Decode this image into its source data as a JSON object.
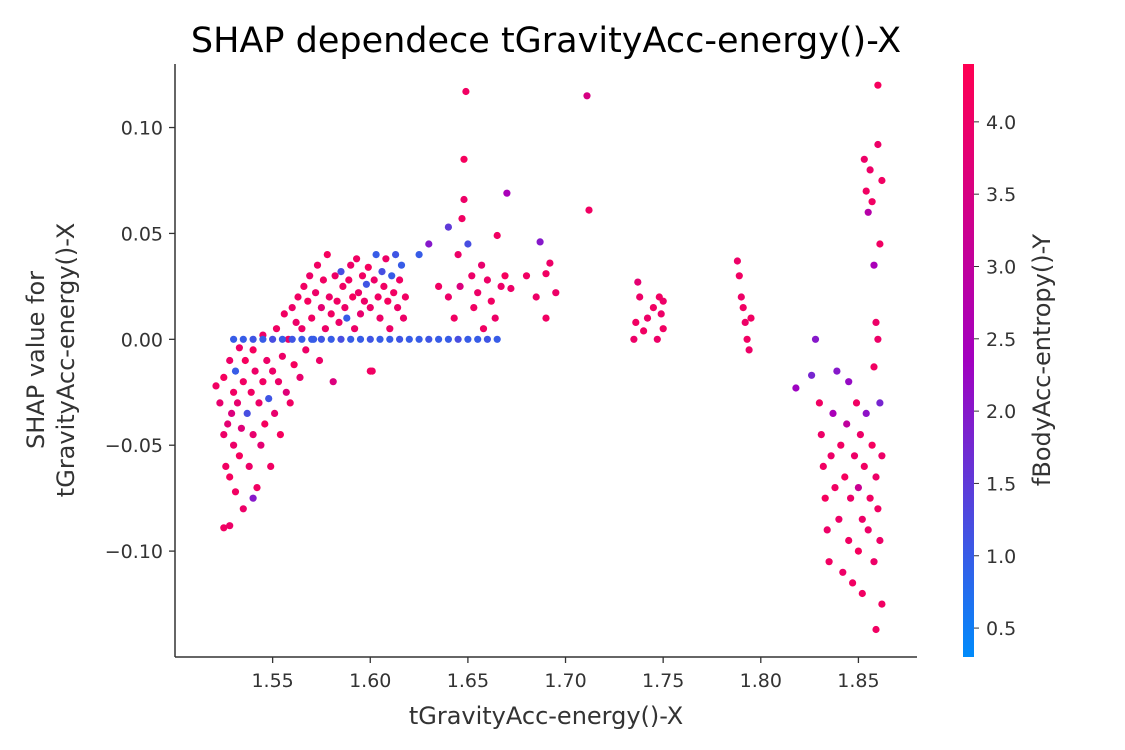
{
  "chart_data": {
    "type": "scatter",
    "title": "SHAP dependece tGravityAcc-energy()-X",
    "xlabel": "tGravityAcc-energy()-X",
    "ylabel_line1": "SHAP value for",
    "ylabel_line2": "tGravityAcc-energy()-X",
    "xlim": [
      1.5,
      1.88
    ],
    "ylim": [
      -0.15,
      0.13
    ],
    "x_ticks": [
      1.55,
      1.6,
      1.65,
      1.7,
      1.75,
      1.8,
      1.85
    ],
    "x_tick_labels": [
      "1.55",
      "1.60",
      "1.65",
      "1.70",
      "1.75",
      "1.80",
      "1.85"
    ],
    "y_ticks": [
      0.1,
      0.05,
      0.0,
      -0.05,
      -0.1
    ],
    "y_tick_labels": [
      "0.10",
      "0.05",
      "0.00",
      "−0.05",
      "−0.10"
    ],
    "colorbar": {
      "label": "fBodyAcc-entropy()-Y",
      "range": [
        0.3,
        4.4
      ],
      "ticks": [
        0.5,
        1.0,
        1.5,
        2.0,
        2.5,
        3.0,
        3.5,
        4.0
      ],
      "tick_labels": [
        "0.5",
        "1.0",
        "1.5",
        "2.0",
        "2.5",
        "3.0",
        "3.5",
        "4.0"
      ],
      "color_low": "#008bfb",
      "color_mid": "#a200c0",
      "color_high": "#ff0052"
    },
    "points": [
      [
        1.521,
        -0.022,
        4.1
      ],
      [
        1.523,
        -0.03,
        3.9
      ],
      [
        1.525,
        -0.018,
        4.2
      ],
      [
        1.525,
        -0.045,
        4.0
      ],
      [
        1.526,
        -0.06,
        4.1
      ],
      [
        1.527,
        -0.04,
        3.8
      ],
      [
        1.528,
        -0.01,
        4.0
      ],
      [
        1.528,
        -0.065,
        4.2
      ],
      [
        1.529,
        -0.035,
        3.6
      ],
      [
        1.53,
        -0.025,
        4.1
      ],
      [
        1.53,
        -0.05,
        4.0
      ],
      [
        1.531,
        -0.015,
        1.0
      ],
      [
        1.531,
        -0.072,
        4.1
      ],
      [
        1.532,
        -0.03,
        3.9
      ],
      [
        1.533,
        -0.004,
        4.0
      ],
      [
        1.533,
        -0.055,
        4.2
      ],
      [
        1.534,
        -0.042,
        3.7
      ],
      [
        1.535,
        -0.02,
        4.1
      ],
      [
        1.535,
        -0.08,
        4.0
      ],
      [
        1.536,
        -0.01,
        4.2
      ],
      [
        1.537,
        -0.035,
        1.2
      ],
      [
        1.538,
        -0.06,
        4.0
      ],
      [
        1.539,
        -0.025,
        4.1
      ],
      [
        1.54,
        -0.045,
        3.9
      ],
      [
        1.54,
        -0.005,
        4.2
      ],
      [
        1.541,
        -0.015,
        4.0
      ],
      [
        1.542,
        -0.07,
        4.1
      ],
      [
        1.543,
        -0.03,
        4.0
      ],
      [
        1.544,
        -0.05,
        3.8
      ],
      [
        1.545,
        -0.02,
        4.1
      ],
      [
        1.545,
        0.002,
        4.0
      ],
      [
        1.546,
        -0.04,
        4.2
      ],
      [
        1.547,
        -0.01,
        4.0
      ],
      [
        1.548,
        -0.028,
        1.1
      ],
      [
        1.549,
        -0.06,
        4.1
      ],
      [
        1.55,
        -0.015,
        4.0
      ],
      [
        1.551,
        -0.035,
        3.9
      ],
      [
        1.552,
        0.005,
        4.1
      ],
      [
        1.553,
        -0.02,
        4.0
      ],
      [
        1.554,
        -0.045,
        4.2
      ],
      [
        1.555,
        -0.008,
        4.0
      ],
      [
        1.556,
        0.012,
        4.1
      ],
      [
        1.557,
        -0.025,
        3.7
      ],
      [
        1.558,
        0.0,
        4.0
      ],
      [
        1.559,
        -0.03,
        4.1
      ],
      [
        1.56,
        0.015,
        4.0
      ],
      [
        1.561,
        -0.012,
        4.2
      ],
      [
        1.562,
        0.008,
        4.0
      ],
      [
        1.563,
        0.02,
        4.1
      ],
      [
        1.564,
        -0.018,
        3.9
      ],
      [
        1.565,
        0.005,
        4.0
      ],
      [
        1.566,
        0.025,
        4.1
      ],
      [
        1.567,
        -0.005,
        4.0
      ],
      [
        1.568,
        0.018,
        4.2
      ],
      [
        1.569,
        0.03,
        4.0
      ],
      [
        1.57,
        0.01,
        4.1
      ],
      [
        1.571,
        0.0,
        1.0
      ],
      [
        1.572,
        0.022,
        4.0
      ],
      [
        1.573,
        0.035,
        4.1
      ],
      [
        1.574,
        -0.01,
        4.0
      ],
      [
        1.575,
        0.015,
        3.8
      ],
      [
        1.576,
        0.028,
        4.1
      ],
      [
        1.577,
        0.005,
        4.0
      ],
      [
        1.578,
        0.04,
        4.2
      ],
      [
        1.579,
        0.02,
        4.0
      ],
      [
        1.58,
        0.012,
        4.1
      ],
      [
        1.581,
        -0.02,
        3.6
      ],
      [
        1.582,
        0.03,
        4.0
      ],
      [
        1.583,
        0.018,
        4.1
      ],
      [
        1.584,
        0.008,
        4.0
      ],
      [
        1.585,
        0.032,
        1.2
      ],
      [
        1.586,
        0.025,
        4.1
      ],
      [
        1.587,
        0.015,
        4.0
      ],
      [
        1.588,
        0.01,
        1.0
      ],
      [
        1.589,
        0.028,
        4.1
      ],
      [
        1.59,
        0.035,
        4.0
      ],
      [
        1.591,
        0.02,
        4.2
      ],
      [
        1.592,
        0.005,
        4.0
      ],
      [
        1.593,
        0.038,
        4.1
      ],
      [
        1.594,
        0.022,
        4.0
      ],
      [
        1.595,
        0.012,
        3.9
      ],
      [
        1.596,
        0.03,
        4.1
      ],
      [
        1.597,
        0.018,
        4.0
      ],
      [
        1.598,
        0.026,
        1.1
      ],
      [
        1.599,
        0.034,
        4.2
      ],
      [
        1.6,
        0.015,
        4.0
      ],
      [
        1.601,
        -0.015,
        4.1
      ],
      [
        1.602,
        0.028,
        4.0
      ],
      [
        1.603,
        0.04,
        1.0
      ],
      [
        1.604,
        0.02,
        4.1
      ],
      [
        1.605,
        0.01,
        4.0
      ],
      [
        1.606,
        0.032,
        1.2
      ],
      [
        1.607,
        0.025,
        4.1
      ],
      [
        1.608,
        0.038,
        4.0
      ],
      [
        1.609,
        0.018,
        4.2
      ],
      [
        1.61,
        0.005,
        4.0
      ],
      [
        1.611,
        0.03,
        1.0
      ],
      [
        1.612,
        0.022,
        4.1
      ],
      [
        1.613,
        0.04,
        1.1
      ],
      [
        1.614,
        0.015,
        4.0
      ],
      [
        1.615,
        0.028,
        4.1
      ],
      [
        1.616,
        0.035,
        1.0
      ],
      [
        1.617,
        0.01,
        4.0
      ],
      [
        1.618,
        0.02,
        4.1
      ],
      [
        1.53,
        0.0,
        1.0
      ],
      [
        1.535,
        0.0,
        1.0
      ],
      [
        1.54,
        0.0,
        1.1
      ],
      [
        1.545,
        0.0,
        1.0
      ],
      [
        1.55,
        0.0,
        1.2
      ],
      [
        1.555,
        0.0,
        1.0
      ],
      [
        1.56,
        0.0,
        1.1
      ],
      [
        1.565,
        0.0,
        1.0
      ],
      [
        1.57,
        0.0,
        1.0
      ],
      [
        1.575,
        0.0,
        1.1
      ],
      [
        1.58,
        0.0,
        1.0
      ],
      [
        1.585,
        0.0,
        1.2
      ],
      [
        1.59,
        0.0,
        1.0
      ],
      [
        1.595,
        0.0,
        1.0
      ],
      [
        1.6,
        0.0,
        1.1
      ],
      [
        1.605,
        0.0,
        1.0
      ],
      [
        1.61,
        0.0,
        1.0
      ],
      [
        1.615,
        0.0,
        1.1
      ],
      [
        1.62,
        0.0,
        1.0
      ],
      [
        1.625,
        0.0,
        1.0
      ],
      [
        1.63,
        0.0,
        1.1
      ],
      [
        1.635,
        0.0,
        1.0
      ],
      [
        1.64,
        0.0,
        1.0
      ],
      [
        1.645,
        0.0,
        1.2
      ],
      [
        1.65,
        0.0,
        1.0
      ],
      [
        1.655,
        0.0,
        1.0
      ],
      [
        1.66,
        0.0,
        1.1
      ],
      [
        1.665,
        0.0,
        1.0
      ],
      [
        1.525,
        -0.089,
        4.1
      ],
      [
        1.528,
        -0.088,
        4.0
      ],
      [
        1.54,
        -0.075,
        2.0
      ],
      [
        1.6,
        -0.015,
        4.1
      ],
      [
        1.625,
        0.04,
        1.0
      ],
      [
        1.63,
        0.045,
        2.0
      ],
      [
        1.635,
        0.025,
        4.1
      ],
      [
        1.64,
        0.053,
        1.5
      ],
      [
        1.64,
        0.02,
        4.0
      ],
      [
        1.643,
        0.01,
        4.1
      ],
      [
        1.645,
        0.04,
        4.0
      ],
      [
        1.646,
        0.025,
        3.6
      ],
      [
        1.647,
        0.057,
        4.1
      ],
      [
        1.648,
        0.066,
        4.0
      ],
      [
        1.648,
        0.085,
        4.2
      ],
      [
        1.649,
        0.117,
        4.1
      ],
      [
        1.65,
        0.045,
        1.2
      ],
      [
        1.652,
        0.03,
        4.0
      ],
      [
        1.653,
        0.015,
        4.1
      ],
      [
        1.655,
        0.022,
        4.0
      ],
      [
        1.657,
        0.035,
        3.9
      ],
      [
        1.658,
        0.005,
        4.1
      ],
      [
        1.66,
        0.028,
        4.0
      ],
      [
        1.662,
        0.018,
        4.1
      ],
      [
        1.664,
        0.01,
        4.0
      ],
      [
        1.665,
        0.049,
        4.1
      ],
      [
        1.667,
        0.025,
        4.0
      ],
      [
        1.669,
        0.03,
        4.2
      ],
      [
        1.67,
        0.069,
        2.5
      ],
      [
        1.672,
        0.024,
        4.0
      ],
      [
        1.68,
        0.03,
        4.1
      ],
      [
        1.685,
        0.02,
        4.0
      ],
      [
        1.687,
        0.046,
        2.0
      ],
      [
        1.69,
        0.031,
        4.1
      ],
      [
        1.692,
        0.036,
        4.0
      ],
      [
        1.69,
        0.01,
        4.1
      ],
      [
        1.695,
        0.022,
        4.0
      ],
      [
        1.711,
        0.115,
        3.5
      ],
      [
        1.712,
        0.061,
        4.1
      ],
      [
        1.735,
        0.0,
        4.0
      ],
      [
        1.736,
        0.008,
        4.1
      ],
      [
        1.737,
        0.027,
        3.8
      ],
      [
        1.738,
        0.02,
        4.0
      ],
      [
        1.74,
        0.004,
        4.1
      ],
      [
        1.742,
        0.01,
        4.0
      ],
      [
        1.745,
        0.015,
        4.1
      ],
      [
        1.747,
        0.0,
        4.0
      ],
      [
        1.748,
        0.02,
        4.1
      ],
      [
        1.749,
        0.012,
        4.0
      ],
      [
        1.75,
        0.005,
        4.1
      ],
      [
        1.75,
        0.018,
        4.0
      ],
      [
        1.788,
        0.037,
        4.0
      ],
      [
        1.789,
        0.03,
        4.1
      ],
      [
        1.79,
        0.02,
        4.0
      ],
      [
        1.791,
        0.015,
        4.1
      ],
      [
        1.792,
        0.008,
        4.0
      ],
      [
        1.793,
        0.0,
        4.1
      ],
      [
        1.794,
        -0.005,
        4.0
      ],
      [
        1.795,
        0.01,
        4.1
      ],
      [
        1.818,
        -0.023,
        2.3
      ],
      [
        1.826,
        -0.017,
        1.8
      ],
      [
        1.828,
        0.0,
        2.0
      ],
      [
        1.83,
        -0.03,
        4.1
      ],
      [
        1.831,
        -0.045,
        4.0
      ],
      [
        1.832,
        -0.06,
        4.1
      ],
      [
        1.833,
        -0.075,
        4.2
      ],
      [
        1.834,
        -0.09,
        4.0
      ],
      [
        1.835,
        -0.105,
        4.1
      ],
      [
        1.836,
        -0.055,
        4.0
      ],
      [
        1.837,
        -0.035,
        2.5
      ],
      [
        1.838,
        -0.07,
        4.1
      ],
      [
        1.839,
        -0.015,
        2.0
      ],
      [
        1.84,
        -0.085,
        4.0
      ],
      [
        1.841,
        -0.05,
        4.1
      ],
      [
        1.842,
        -0.11,
        4.0
      ],
      [
        1.843,
        -0.065,
        4.2
      ],
      [
        1.844,
        -0.04,
        3.0
      ],
      [
        1.845,
        -0.095,
        4.1
      ],
      [
        1.845,
        -0.02,
        2.2
      ],
      [
        1.846,
        -0.075,
        4.0
      ],
      [
        1.847,
        -0.115,
        4.1
      ],
      [
        1.848,
        -0.055,
        4.0
      ],
      [
        1.849,
        -0.03,
        4.1
      ],
      [
        1.85,
        -0.1,
        4.2
      ],
      [
        1.85,
        -0.07,
        3.2
      ],
      [
        1.851,
        -0.045,
        4.0
      ],
      [
        1.852,
        -0.12,
        4.1
      ],
      [
        1.852,
        -0.085,
        4.0
      ],
      [
        1.853,
        -0.06,
        4.1
      ],
      [
        1.853,
        0.085,
        4.0
      ],
      [
        1.854,
        -0.035,
        2.1
      ],
      [
        1.854,
        0.07,
        4.1
      ],
      [
        1.855,
        -0.09,
        4.0
      ],
      [
        1.855,
        0.06,
        2.8
      ],
      [
        1.856,
        -0.075,
        4.1
      ],
      [
        1.856,
        0.08,
        4.0
      ],
      [
        1.857,
        -0.05,
        4.2
      ],
      [
        1.857,
        0.065,
        4.1
      ],
      [
        1.858,
        -0.105,
        4.0
      ],
      [
        1.858,
        0.035,
        2.5
      ],
      [
        1.859,
        -0.137,
        4.1
      ],
      [
        1.859,
        -0.065,
        4.0
      ],
      [
        1.86,
        0.12,
        4.2
      ],
      [
        1.86,
        0.092,
        4.0
      ],
      [
        1.86,
        -0.08,
        4.1
      ],
      [
        1.86,
        0.0,
        4.0
      ],
      [
        1.861,
        -0.03,
        1.8
      ],
      [
        1.861,
        0.045,
        4.1
      ],
      [
        1.861,
        -0.095,
        4.0
      ],
      [
        1.862,
        0.075,
        4.1
      ],
      [
        1.862,
        -0.055,
        4.0
      ],
      [
        1.862,
        -0.125,
        4.1
      ],
      [
        1.859,
        0.008,
        4.0
      ],
      [
        1.858,
        -0.013,
        4.1
      ]
    ]
  }
}
